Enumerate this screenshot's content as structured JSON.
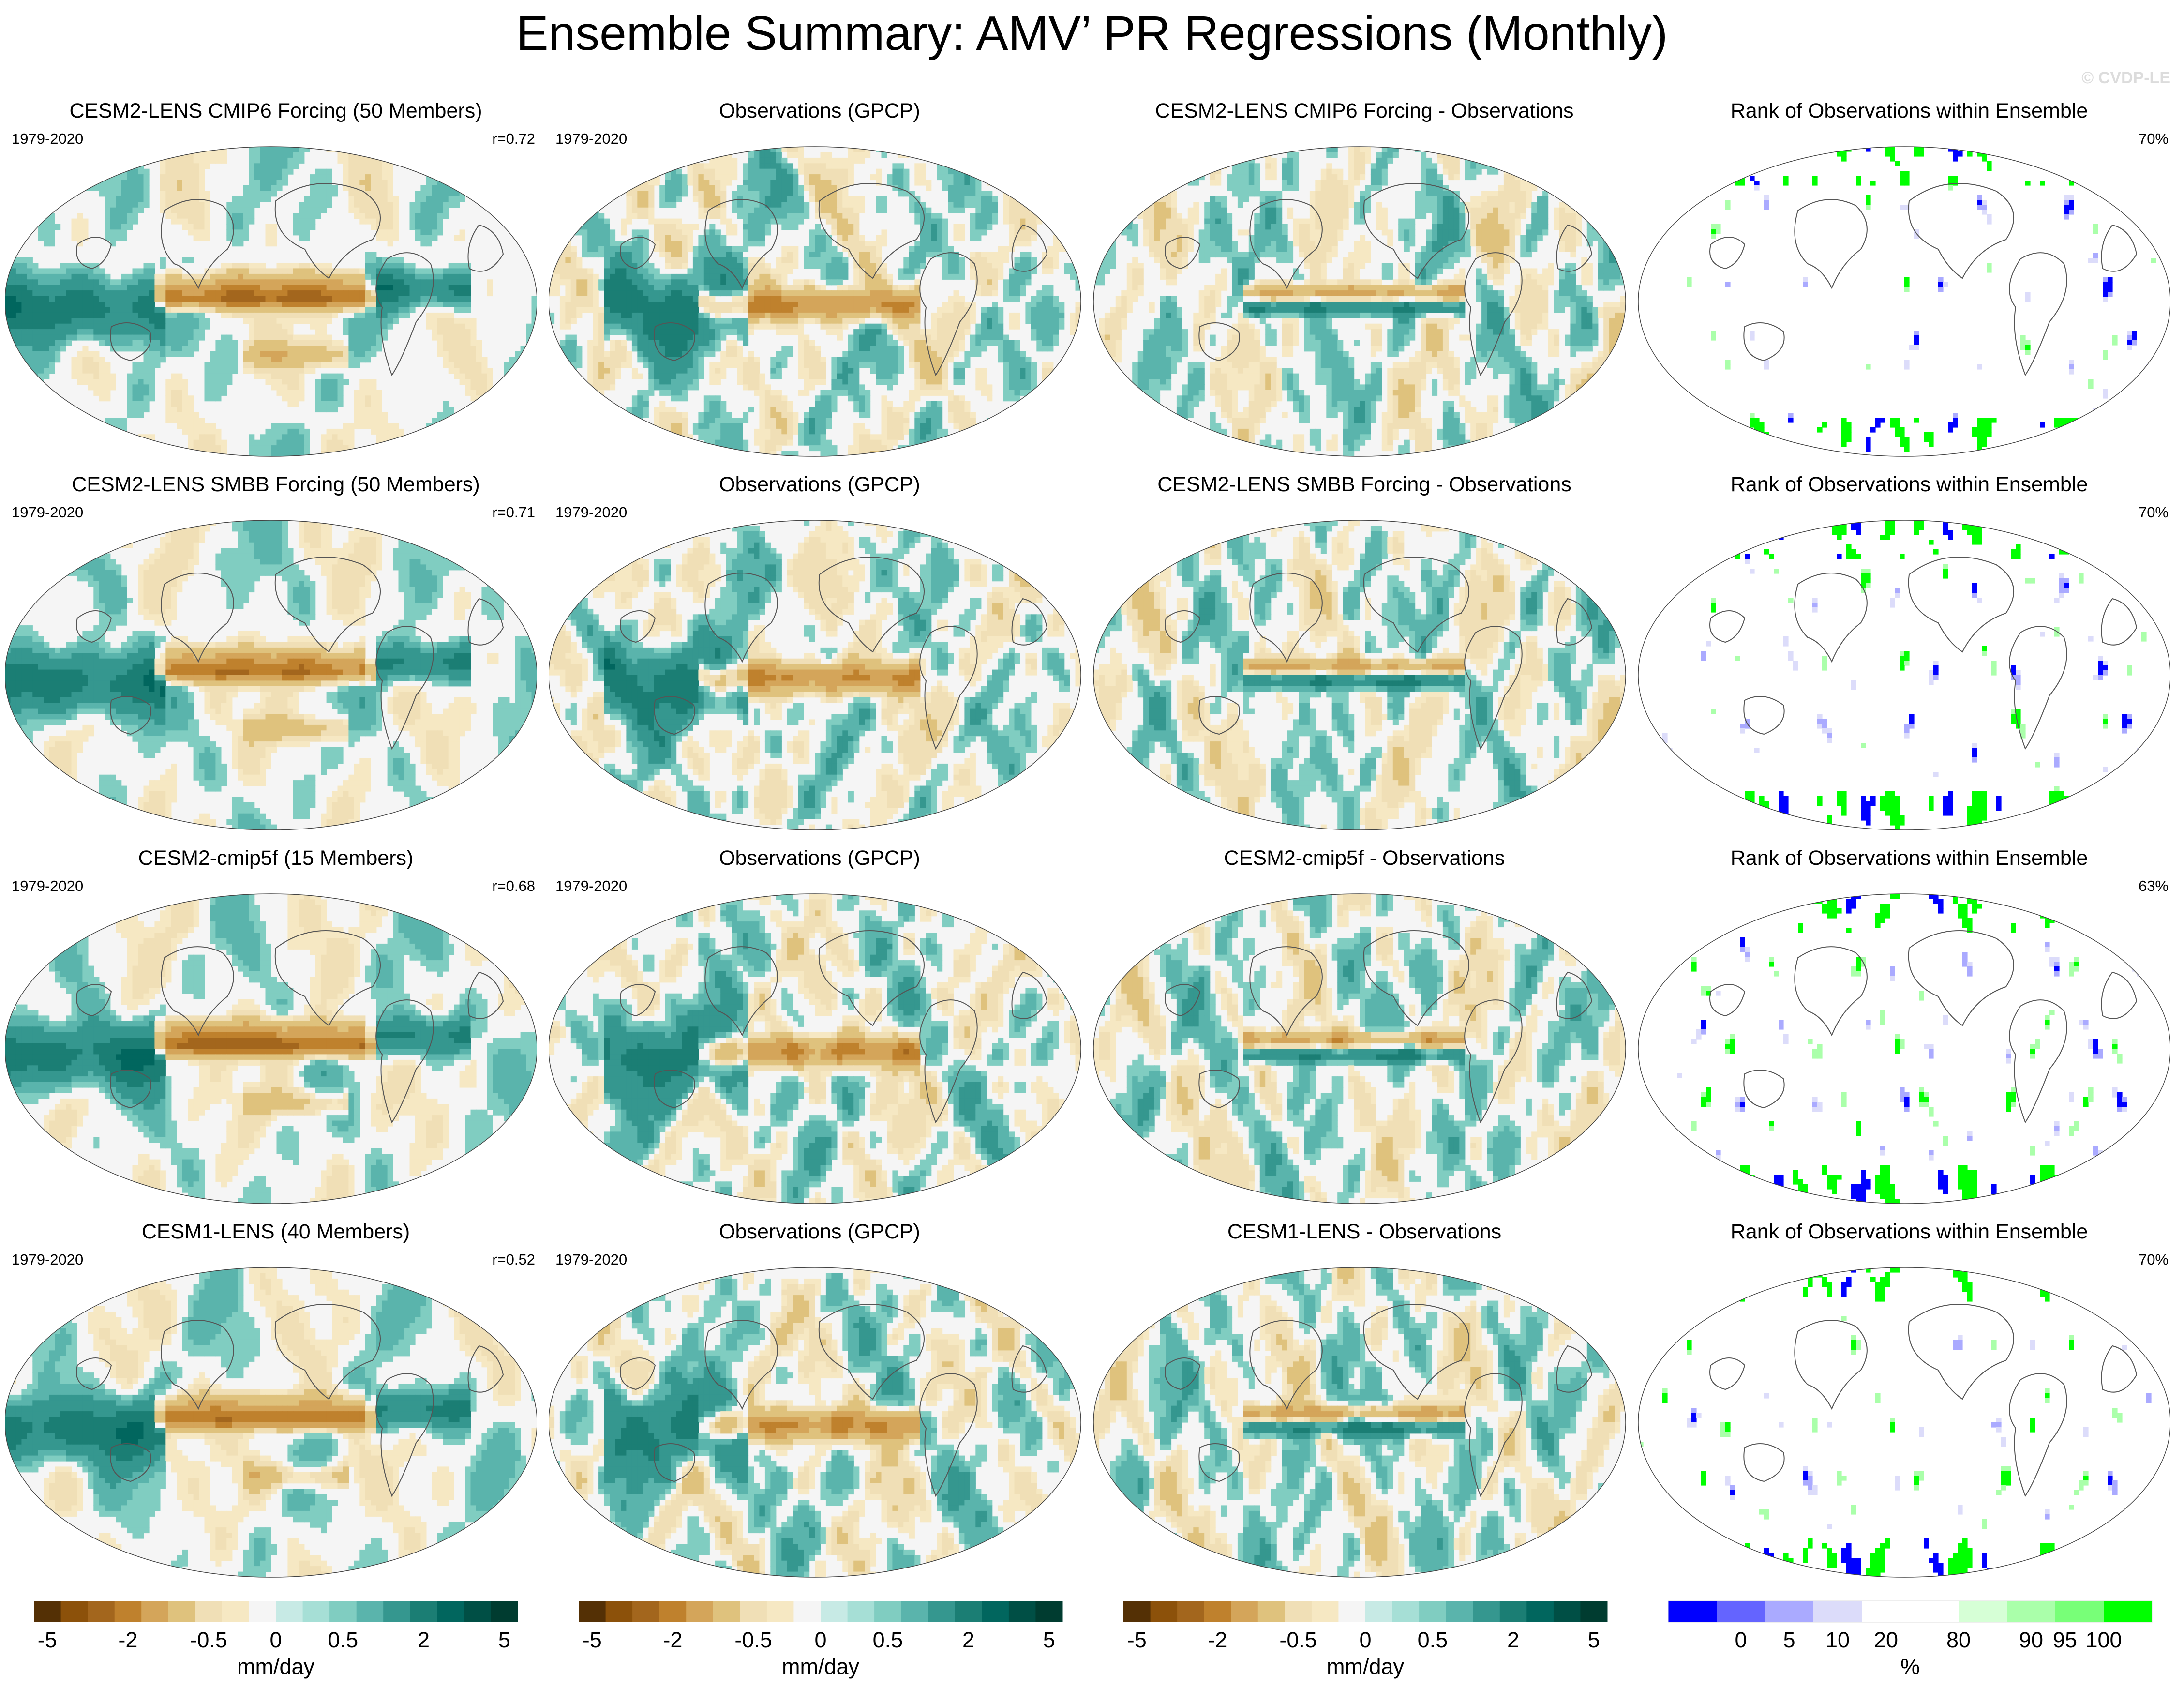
{
  "title": "Ensemble Summary: AMV’ PR Regressions (Monthly)",
  "copyright": "© CVDP-LE",
  "colors": {
    "diverging": [
      "#543005",
      "#8c510a",
      "#a3661d",
      "#bf812d",
      "#d4a55a",
      "#dfc27d",
      "#f0dfb6",
      "#f6e8c3",
      "#f5f5f5",
      "#e0f2ef",
      "#c7eae5",
      "#a6dfd6",
      "#80cdc1",
      "#5ab4ac",
      "#35978f",
      "#1b7e74",
      "#01665e",
      "#004f45",
      "#003c30"
    ],
    "rank": [
      "#0000ff",
      "#6464ff",
      "#aaaaff",
      "#dcdcfa",
      "#ffffff",
      "#ffffff",
      "#d6ffd6",
      "#aaffaa",
      "#78ff78",
      "#00ff00"
    ],
    "coast": "#555555",
    "ocean_bg": "#f4f1ea"
  },
  "years": "1979-2020",
  "rows": [
    {
      "model_title": "CESM2-LENS CMIP6 Forcing (50 Members)",
      "model_r": "r=0.72",
      "obs_title": "Observations (GPCP)",
      "diff_title": "CESM2-LENS CMIP6 Forcing - Observations",
      "rank_title": "Rank of Observations within Ensemble",
      "rank_pct": "70%",
      "model_strength": 1.0
    },
    {
      "model_title": "CESM2-LENS SMBB Forcing (50 Members)",
      "model_r": "r=0.71",
      "obs_title": "Observations (GPCP)",
      "diff_title": "CESM2-LENS SMBB Forcing - Observations",
      "rank_title": "Rank of Observations within Ensemble",
      "rank_pct": "70%",
      "model_strength": 0.95
    },
    {
      "model_title": "CESM2-cmip5f (15 Members)",
      "model_r": "r=0.68",
      "obs_title": "Observations (GPCP)",
      "diff_title": "CESM2-cmip5f - Observations",
      "rank_title": "Rank of Observations within Ensemble",
      "rank_pct": "63%",
      "model_strength": 1.05
    },
    {
      "model_title": "CESM1-LENS (40 Members)",
      "model_r": "r=0.52",
      "obs_title": "Observations (GPCP)",
      "diff_title": "CESM1-LENS - Observations",
      "rank_title": "Rank of Observations within Ensemble",
      "rank_pct": "70%",
      "model_strength": 0.9
    }
  ],
  "colorbars": {
    "diverging": {
      "ticks": [
        "-5",
        "-2",
        "-0.5",
        "0",
        "0.5",
        "2",
        "5"
      ],
      "label": "mm/day"
    },
    "rank": {
      "ticks": [
        "0",
        "5",
        "10",
        "20",
        "80",
        "90",
        "95",
        "100"
      ],
      "label": "%"
    }
  },
  "chart_data": {
    "type": "heatmap",
    "description_variable": "PR regression onto AMV (precipitation anomaly per unit AMV index)",
    "units": "mm/day",
    "period": "1979-2020",
    "diverging_levels": [
      -5,
      -4,
      -3,
      -2,
      -1,
      -0.5,
      -0.25,
      -0.1,
      0,
      0.1,
      0.25,
      0.5,
      1,
      2,
      3,
      4,
      5
    ],
    "rank_levels": [
      0,
      5,
      10,
      20,
      80,
      90,
      95,
      100
    ],
    "panels": [
      {
        "row": 1,
        "column": "model",
        "title": "CESM2-LENS CMIP6 Forcing (50 Members)",
        "pattern_correlation": 0.72
      },
      {
        "row": 1,
        "column": "observations",
        "title": "Observations (GPCP)"
      },
      {
        "row": 1,
        "column": "difference",
        "title": "CESM2-LENS CMIP6 Forcing - Observations"
      },
      {
        "row": 1,
        "column": "rank",
        "title": "Rank of Observations within Ensemble",
        "percent_within_10_90": 70
      },
      {
        "row": 2,
        "column": "model",
        "title": "CESM2-LENS SMBB Forcing (50 Members)",
        "pattern_correlation": 0.71
      },
      {
        "row": 2,
        "column": "observations",
        "title": "Observations (GPCP)"
      },
      {
        "row": 2,
        "column": "difference",
        "title": "CESM2-LENS SMBB Forcing - Observations"
      },
      {
        "row": 2,
        "column": "rank",
        "title": "Rank of Observations within Ensemble",
        "percent_within_10_90": 70
      },
      {
        "row": 3,
        "column": "model",
        "title": "CESM2-cmip5f (15 Members)",
        "pattern_correlation": 0.68
      },
      {
        "row": 3,
        "column": "observations",
        "title": "Observations (GPCP)"
      },
      {
        "row": 3,
        "column": "difference",
        "title": "CESM2-cmip5f - Observations"
      },
      {
        "row": 3,
        "column": "rank",
        "title": "Rank of Observations within Ensemble",
        "percent_within_10_90": 63
      },
      {
        "row": 4,
        "column": "model",
        "title": "CESM1-LENS (40 Members)",
        "pattern_correlation": 0.52
      },
      {
        "row": 4,
        "column": "observations",
        "title": "Observations (GPCP)"
      },
      {
        "row": 4,
        "column": "difference",
        "title": "CESM1-LENS - Observations"
      },
      {
        "row": 4,
        "column": "rank",
        "title": "Rank of Observations within Ensemble",
        "percent_within_10_90": 70
      }
    ]
  }
}
